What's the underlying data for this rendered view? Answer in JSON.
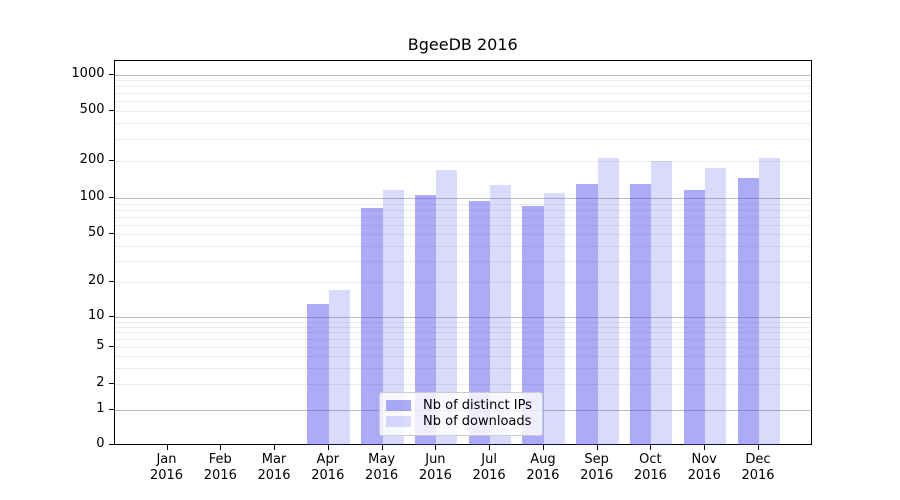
{
  "title": "BgeeDB 2016",
  "chart_data": {
    "type": "bar",
    "title": "BgeeDB 2016",
    "categories": [
      "Jan",
      "Feb",
      "Mar",
      "Apr",
      "May",
      "Jun",
      "Jul",
      "Aug",
      "Sep",
      "Oct",
      "Nov",
      "Dec"
    ],
    "category_year": "2016",
    "series": [
      {
        "name": "Nb of distinct IPs",
        "color": "rgba(72,72,238,0.46)",
        "values": [
          0,
          0,
          0,
          13,
          82,
          106,
          94,
          86,
          129,
          130,
          116,
          144
        ]
      },
      {
        "name": "Nb of downloads",
        "color": "rgba(72,72,238,0.20)",
        "values": [
          0,
          0,
          0,
          17,
          117,
          167,
          128,
          109,
          210,
          200,
          174,
          210
        ]
      }
    ],
    "y_ticks": [
      0,
      1,
      2,
      5,
      10,
      20,
      50,
      100,
      200,
      500,
      1000
    ],
    "y_scale": "symlog",
    "ylim": [
      0,
      1300
    ],
    "xlabel": "",
    "ylabel": "",
    "grid": true,
    "legend_position": "lower center",
    "colors": {
      "bar_dark": "rgba(72,72,238,0.46)",
      "bar_light": "rgba(72,72,238,0.20)",
      "grid_major": "#bcbcbc",
      "grid_minor": "#ececec",
      "axis": "#000000",
      "legend_border": "#cccccc"
    }
  }
}
